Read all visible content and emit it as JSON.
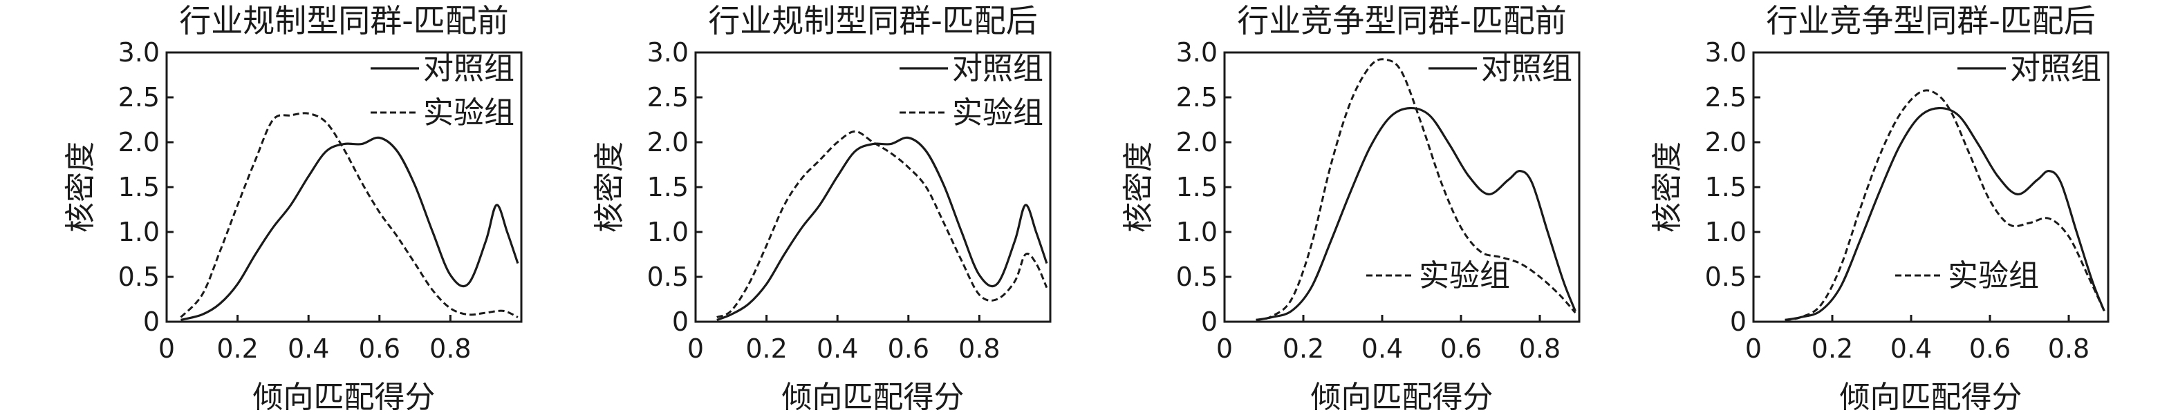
{
  "chart_data": [
    {
      "type": "line",
      "title": "行业规制型同群-匹配前",
      "xlabel": "倾向匹配得分",
      "ylabel": "核密度",
      "xlim": [
        0,
        1.0
      ],
      "ylim": [
        0,
        3.0
      ],
      "xticks": [
        "0",
        "0.2",
        "0.4",
        "0.6",
        "0.8"
      ],
      "yticks": [
        "0",
        "0.5",
        "1.0",
        "1.5",
        "2.0",
        "2.5",
        "3.0"
      ],
      "legend": "top-right",
      "series": [
        {
          "name": "对照组",
          "style": "solid",
          "x": [
            0.04,
            0.1,
            0.15,
            0.2,
            0.25,
            0.3,
            0.35,
            0.4,
            0.45,
            0.5,
            0.55,
            0.6,
            0.65,
            0.7,
            0.75,
            0.8,
            0.85,
            0.9,
            0.93,
            0.96,
            0.99
          ],
          "y": [
            0.02,
            0.08,
            0.2,
            0.42,
            0.75,
            1.05,
            1.3,
            1.62,
            1.9,
            1.98,
            1.98,
            2.05,
            1.9,
            1.52,
            1.0,
            0.52,
            0.42,
            0.9,
            1.3,
            1.0,
            0.65
          ]
        },
        {
          "name": "实验组",
          "style": "dashed",
          "x": [
            0.04,
            0.1,
            0.15,
            0.2,
            0.25,
            0.3,
            0.35,
            0.4,
            0.45,
            0.5,
            0.55,
            0.6,
            0.65,
            0.7,
            0.75,
            0.8,
            0.85,
            0.9,
            0.95,
            0.99
          ],
          "y": [
            0.05,
            0.3,
            0.78,
            1.3,
            1.8,
            2.25,
            2.3,
            2.32,
            2.22,
            1.92,
            1.55,
            1.22,
            0.95,
            0.65,
            0.35,
            0.15,
            0.08,
            0.1,
            0.12,
            0.05
          ]
        }
      ]
    },
    {
      "type": "line",
      "title": "行业规制型同群-匹配后",
      "xlabel": "倾向匹配得分",
      "ylabel": "核密度",
      "xlim": [
        0,
        1.0
      ],
      "ylim": [
        0,
        3.0
      ],
      "xticks": [
        "0",
        "0.2",
        "0.4",
        "0.6",
        "0.8"
      ],
      "yticks": [
        "0",
        "0.5",
        "1.0",
        "1.5",
        "2.0",
        "2.5",
        "3.0"
      ],
      "legend": "top-right",
      "series": [
        {
          "name": "对照组",
          "style": "solid",
          "x": [
            0.06,
            0.1,
            0.15,
            0.2,
            0.25,
            0.3,
            0.35,
            0.4,
            0.45,
            0.5,
            0.55,
            0.6,
            0.65,
            0.7,
            0.75,
            0.8,
            0.85,
            0.9,
            0.93,
            0.96,
            0.99
          ],
          "y": [
            0.02,
            0.08,
            0.2,
            0.42,
            0.75,
            1.05,
            1.3,
            1.62,
            1.9,
            1.98,
            1.98,
            2.05,
            1.9,
            1.52,
            1.0,
            0.52,
            0.42,
            0.9,
            1.3,
            1.0,
            0.65
          ]
        },
        {
          "name": "实验组",
          "style": "dashed",
          "x": [
            0.06,
            0.1,
            0.15,
            0.2,
            0.25,
            0.3,
            0.35,
            0.4,
            0.45,
            0.5,
            0.55,
            0.6,
            0.65,
            0.7,
            0.75,
            0.8,
            0.85,
            0.9,
            0.93,
            0.96,
            0.99
          ],
          "y": [
            0.05,
            0.12,
            0.42,
            0.85,
            1.3,
            1.6,
            1.8,
            2.0,
            2.12,
            2.0,
            1.88,
            1.72,
            1.5,
            1.1,
            0.68,
            0.3,
            0.25,
            0.45,
            0.75,
            0.65,
            0.38
          ]
        }
      ]
    },
    {
      "type": "line",
      "title": "行业竞争型同群-匹配前",
      "xlabel": "倾向匹配得分",
      "ylabel": "核密度",
      "xlim": [
        0,
        0.9
      ],
      "ylim": [
        0,
        3.0
      ],
      "xticks": [
        "0",
        "0.2",
        "0.4",
        "0.6",
        "0.8"
      ],
      "yticks": [
        "0",
        "0.5",
        "1.0",
        "1.5",
        "2.0",
        "2.5",
        "3.0"
      ],
      "legend": "split",
      "series": [
        {
          "name": "对照组",
          "style": "solid",
          "x": [
            0.08,
            0.12,
            0.17,
            0.22,
            0.27,
            0.32,
            0.37,
            0.42,
            0.47,
            0.52,
            0.57,
            0.62,
            0.67,
            0.72,
            0.75,
            0.78,
            0.82,
            0.86,
            0.89
          ],
          "y": [
            0.02,
            0.05,
            0.12,
            0.38,
            0.9,
            1.45,
            1.95,
            2.28,
            2.38,
            2.3,
            1.98,
            1.62,
            1.42,
            1.58,
            1.68,
            1.55,
            1.0,
            0.45,
            0.12
          ]
        },
        {
          "name": "实验组",
          "style": "dashed",
          "x": [
            0.08,
            0.12,
            0.17,
            0.22,
            0.27,
            0.32,
            0.37,
            0.41,
            0.45,
            0.5,
            0.55,
            0.6,
            0.65,
            0.7,
            0.75,
            0.8,
            0.85,
            0.89
          ],
          "y": [
            0.02,
            0.06,
            0.25,
            0.85,
            1.75,
            2.45,
            2.85,
            2.92,
            2.78,
            2.2,
            1.55,
            1.05,
            0.78,
            0.72,
            0.65,
            0.5,
            0.3,
            0.1
          ]
        }
      ]
    },
    {
      "type": "line",
      "title": "行业竞争型同群-匹配后",
      "xlabel": "倾向匹配得分",
      "ylabel": "核密度",
      "xlim": [
        0,
        0.9
      ],
      "ylim": [
        0,
        3.0
      ],
      "xticks": [
        "0",
        "0.2",
        "0.4",
        "0.6",
        "0.8"
      ],
      "yticks": [
        "0",
        "0.5",
        "1.0",
        "1.5",
        "2.0",
        "2.5",
        "3.0"
      ],
      "legend": "split",
      "series": [
        {
          "name": "对照组",
          "style": "solid",
          "x": [
            0.08,
            0.12,
            0.17,
            0.22,
            0.27,
            0.32,
            0.37,
            0.42,
            0.47,
            0.52,
            0.57,
            0.62,
            0.67,
            0.72,
            0.75,
            0.78,
            0.82,
            0.86,
            0.89
          ],
          "y": [
            0.02,
            0.05,
            0.12,
            0.38,
            0.9,
            1.45,
            1.95,
            2.28,
            2.38,
            2.3,
            1.98,
            1.62,
            1.42,
            1.58,
            1.68,
            1.55,
            1.0,
            0.45,
            0.12
          ]
        },
        {
          "name": "实验组",
          "style": "dashed",
          "x": [
            0.08,
            0.12,
            0.17,
            0.22,
            0.27,
            0.32,
            0.37,
            0.42,
            0.46,
            0.5,
            0.55,
            0.6,
            0.65,
            0.7,
            0.75,
            0.8,
            0.85,
            0.89
          ],
          "y": [
            0.02,
            0.05,
            0.18,
            0.6,
            1.25,
            1.85,
            2.3,
            2.55,
            2.55,
            2.35,
            1.85,
            1.35,
            1.08,
            1.1,
            1.15,
            0.95,
            0.5,
            0.12
          ]
        }
      ]
    }
  ]
}
